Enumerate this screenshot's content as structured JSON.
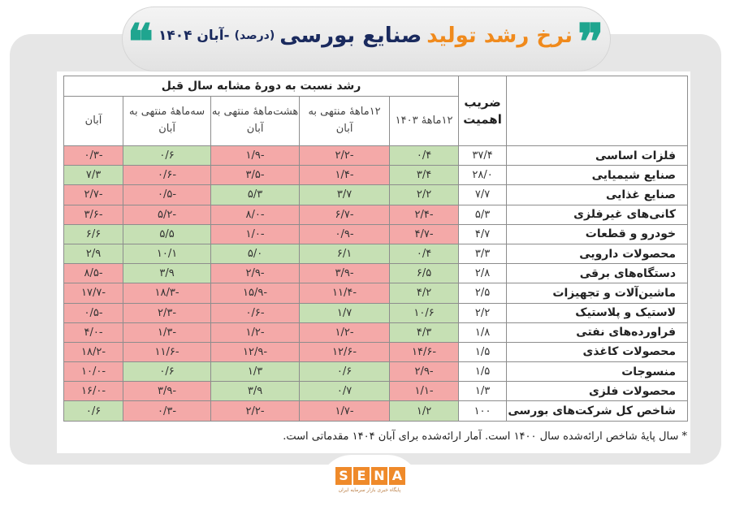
{
  "header": {
    "title_orange": "نرخ رشد تولید",
    "title_navy": "صنایع بورسی",
    "title_unit": "(درصد)",
    "title_date": "-آبان ۱۴۰۴",
    "quote_open": "❞",
    "quote_close": "❝"
  },
  "table": {
    "group_header": "رشد نسبت به دورهٔ مشابه سال قبل",
    "weight_header": "ضریب اهمیت",
    "columns": [
      "۱۲ماههٔ ۱۴۰۳",
      "۱۲ماههٔ منتهی به آبان",
      "هشت‌ماههٔ منتهی به آبان",
      "سه‌ماههٔ منتهی به آبان",
      "آبان"
    ],
    "rows": [
      {
        "name": "فلزات اساسی",
        "weight": "۳۷/۴",
        "values": [
          "۰/۴",
          "-۲/۲",
          "-۱/۹",
          "۰/۶",
          "-۰/۳"
        ],
        "signs": [
          "pos",
          "neg",
          "neg",
          "pos",
          "neg"
        ]
      },
      {
        "name": "صنایع شیمیایی",
        "weight": "۲۸/۰",
        "values": [
          "۳/۴",
          "-۱/۴",
          "-۳/۵",
          "-۰/۶",
          "۷/۳"
        ],
        "signs": [
          "pos",
          "neg",
          "neg",
          "neg",
          "pos"
        ]
      },
      {
        "name": "صنایع غذایی",
        "weight": "۷/۷",
        "values": [
          "۲/۲",
          "۳/۷",
          "۵/۳",
          "-۰/۵",
          "-۲/۷"
        ],
        "signs": [
          "pos",
          "pos",
          "pos",
          "neg",
          "neg"
        ]
      },
      {
        "name": "کانی‌های غیرفلزی",
        "weight": "۵/۳",
        "values": [
          "-۲/۴",
          "-۶/۷",
          "-۸/۰",
          "-۵/۲",
          "-۳/۶"
        ],
        "signs": [
          "neg",
          "neg",
          "neg",
          "neg",
          "neg"
        ]
      },
      {
        "name": "خودرو و قطعات",
        "weight": "۴/۷",
        "values": [
          "-۴/۷",
          "-۰/۹",
          "-۱/۰",
          "۵/۵",
          "۶/۶"
        ],
        "signs": [
          "neg",
          "neg",
          "neg",
          "pos",
          "pos"
        ]
      },
      {
        "name": "محصولات دارویی",
        "weight": "۳/۳",
        "values": [
          "۰/۴",
          "۶/۱",
          "۵/۰",
          "۱۰/۱",
          "۲/۹"
        ],
        "signs": [
          "pos",
          "pos",
          "pos",
          "pos",
          "pos"
        ]
      },
      {
        "name": "دستگاه‌های برقی",
        "weight": "۲/۸",
        "values": [
          "۶/۵",
          "-۳/۹",
          "-۲/۹",
          "۳/۹",
          "-۸/۵"
        ],
        "signs": [
          "pos",
          "neg",
          "neg",
          "pos",
          "neg"
        ]
      },
      {
        "name": "ماشین‌آلات و تجهیزات",
        "weight": "۲/۵",
        "values": [
          "۴/۲",
          "-۱۱/۴",
          "-۱۵/۹",
          "-۱۸/۳",
          "-۱۷/۷"
        ],
        "signs": [
          "pos",
          "neg",
          "neg",
          "neg",
          "neg"
        ]
      },
      {
        "name": "لاستیک و پلاستیک",
        "weight": "۲/۲",
        "values": [
          "۱۰/۶",
          "۱/۷",
          "-۰/۶",
          "-۲/۳",
          "-۰/۵"
        ],
        "signs": [
          "pos",
          "pos",
          "neg",
          "neg",
          "neg"
        ]
      },
      {
        "name": "فراورده‌های نفتی",
        "weight": "۱/۸",
        "values": [
          "۴/۳",
          "-۱/۲",
          "-۱/۲",
          "-۱/۳",
          "-۴/۰"
        ],
        "signs": [
          "pos",
          "neg",
          "neg",
          "neg",
          "neg"
        ]
      },
      {
        "name": "محصولات کاغذی",
        "weight": "۱/۵",
        "values": [
          "-۱۴/۶",
          "-۱۲/۶",
          "-۱۲/۹",
          "-۱۱/۶",
          "-۱۸/۲"
        ],
        "signs": [
          "neg",
          "neg",
          "neg",
          "neg",
          "neg"
        ]
      },
      {
        "name": "منسوجات",
        "weight": "۱/۵",
        "values": [
          "-۲/۹",
          "۰/۶",
          "۱/۳",
          "۰/۶",
          "-۱۰/۰"
        ],
        "signs": [
          "neg",
          "pos",
          "pos",
          "pos",
          "neg"
        ]
      },
      {
        "name": "محصولات فلزی",
        "weight": "۱/۳",
        "values": [
          "-۱/۱",
          "۰/۷",
          "۳/۹",
          "-۳/۹",
          "-۱۶/۰"
        ],
        "signs": [
          "neg",
          "pos",
          "pos",
          "neg",
          "neg"
        ]
      },
      {
        "name": "شاخص کل شرکت‌های بورسی",
        "weight": "۱۰۰",
        "values": [
          "۱/۲",
          "-۱/۷",
          "-۲/۲",
          "-۰/۳",
          "۰/۶"
        ],
        "signs": [
          "pos",
          "neg",
          "neg",
          "neg",
          "pos"
        ]
      }
    ]
  },
  "footnote": "* سال پایهٔ شاخص ارائه‌شده سال ۱۴۰۰ است. آمار ارائه‌شده برای آبان ۱۴۰۴ مقدماتی است.",
  "logo": {
    "letters": [
      "S",
      "E",
      "N",
      "A"
    ],
    "tagline": "پایگاه خبری بازار سرمایه ایران"
  },
  "colors": {
    "positive": "#c6e0b4",
    "negative": "#f4a9a8",
    "title_orange": "#f08a1c",
    "title_navy": "#1a2a5e",
    "quote_teal": "#1fa58f",
    "logo_orange": "#ef8a2a"
  }
}
